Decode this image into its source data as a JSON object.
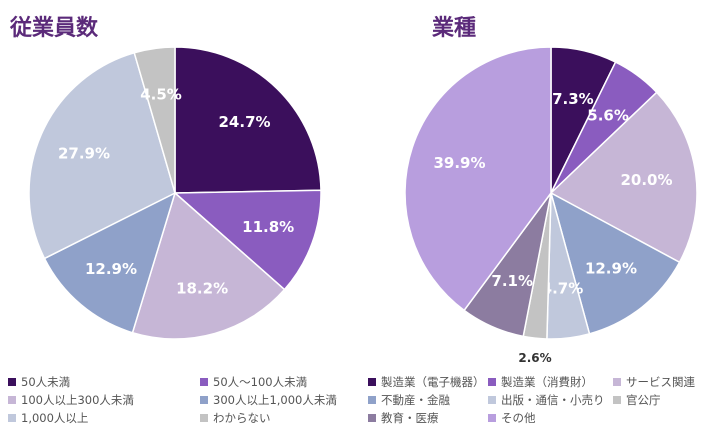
{
  "chart_data": [
    {
      "type": "pie",
      "title": "従業員数",
      "start": "12 o'clock",
      "direction": "clockwise",
      "slices": [
        {
          "label": "50人未満",
          "value": 24.7,
          "label_text": "24.7%",
          "color": "#3b0f5c"
        },
        {
          "label": "50人～100人未満",
          "value": 11.8,
          "label_text": "11.8%",
          "color": "#8a5cbf"
        },
        {
          "label": "100人以上300人未満",
          "value": 18.2,
          "label_text": "18.2%",
          "color": "#c6b6d6"
        },
        {
          "label": "300人以上1,000人未満",
          "value": 12.9,
          "label_text": "12.9%",
          "color": "#8fa1c9"
        },
        {
          "label": "1,000人以上",
          "value": 27.9,
          "label_text": "27.9%",
          "color": "#c0c8dc"
        },
        {
          "label": "わからない",
          "value": 4.5,
          "label_text": "4.5%",
          "color": "#c3c3c3"
        }
      ]
    },
    {
      "type": "pie",
      "title": "業種",
      "start": "12 o'clock",
      "direction": "clockwise",
      "slices": [
        {
          "label": "製造業（電子機器）",
          "value": 7.3,
          "label_text": "7.3%",
          "color": "#3b0f5c"
        },
        {
          "label": "製造業（消費財）",
          "value": 5.6,
          "label_text": "5.6%",
          "color": "#8a5cbf"
        },
        {
          "label": "サービス関連",
          "value": 20.0,
          "label_text": "20.0%",
          "color": "#c6b6d6"
        },
        {
          "label": "不動産・金融",
          "value": 12.9,
          "label_text": "12.9%",
          "color": "#8fa1c9"
        },
        {
          "label": "出版・通信・小売り",
          "value": 4.7,
          "label_text": "4.7%",
          "color": "#c0c8dc"
        },
        {
          "label": "官公庁",
          "value": 2.6,
          "label_text": "2.6%",
          "color": "#c3c3c3"
        },
        {
          "label": "教育・医療",
          "value": 7.1,
          "label_text": "7.1%",
          "color": "#8c7ca0"
        },
        {
          "label": "その他",
          "value": 39.9,
          "label_text": "39.9%",
          "color": "#b89ede"
        }
      ]
    }
  ]
}
